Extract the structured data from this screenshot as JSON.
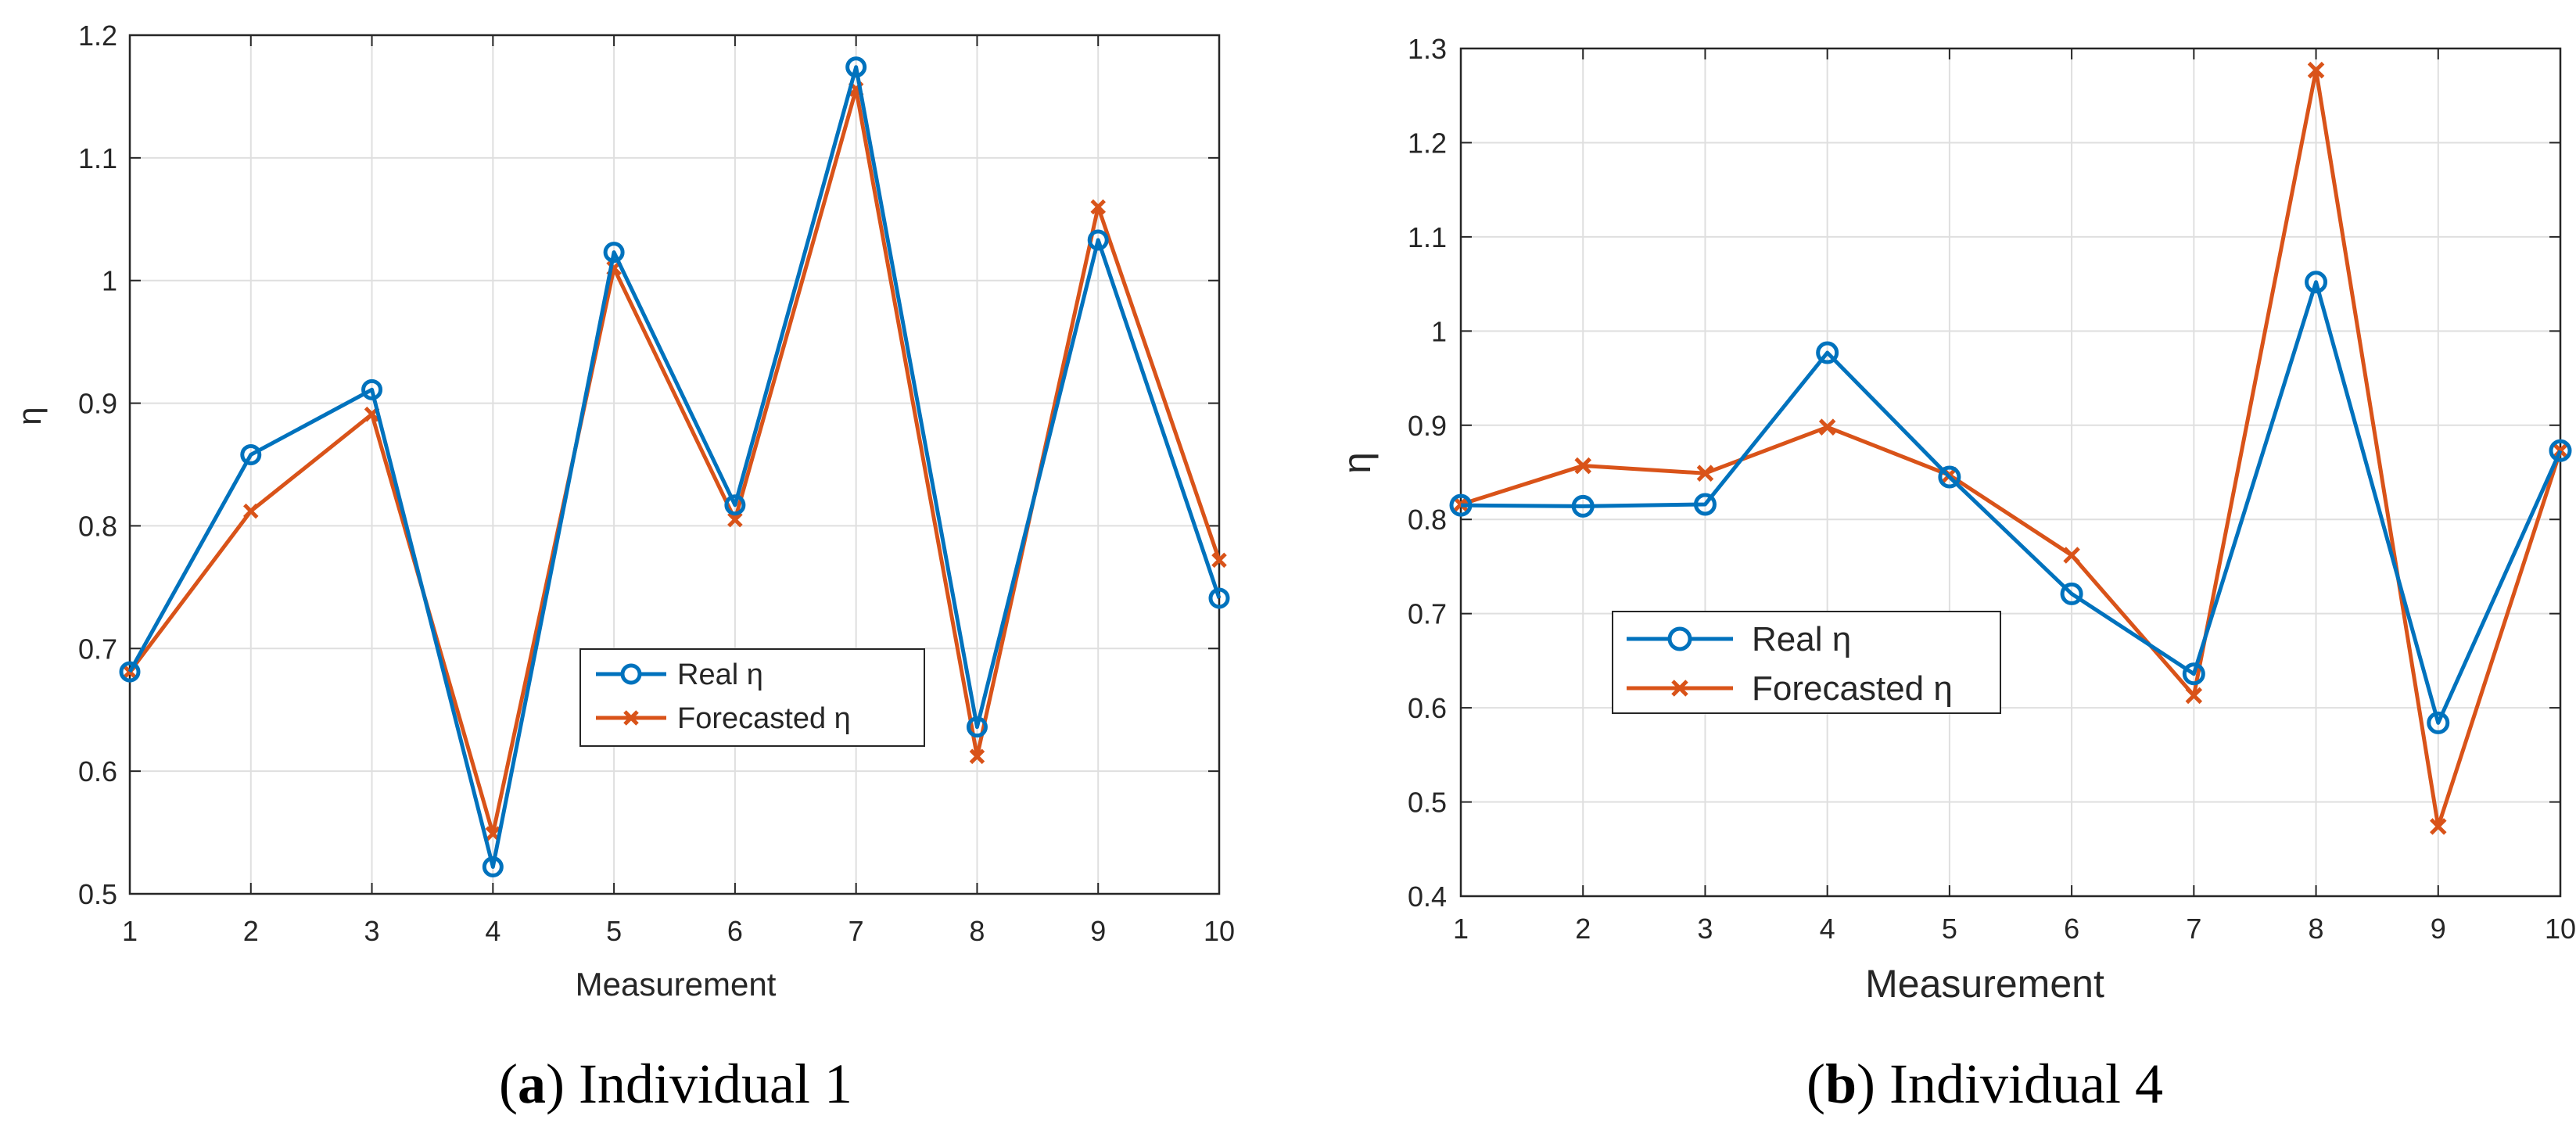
{
  "colors": {
    "real": "#0072BD",
    "forecast": "#D95319",
    "grid": "#DFDFDF",
    "axis": "#262626"
  },
  "chart_data": [
    {
      "type": "line",
      "caption_letter": "a",
      "caption_text": "Individual 1",
      "xlabel": "Measurement",
      "ylabel": "η",
      "x": [
        1,
        2,
        3,
        4,
        5,
        6,
        7,
        8,
        9,
        10
      ],
      "xlim": [
        1,
        10
      ],
      "ylim": [
        0.5,
        1.2
      ],
      "yticks": [
        0.5,
        0.6,
        0.7,
        0.8,
        0.9,
        1.0,
        1.1,
        1.2
      ],
      "ytick_labels": [
        "0.5",
        "0.6",
        "0.7",
        "0.8",
        "0.9",
        "1",
        "1.1",
        "1.2"
      ],
      "grid": true,
      "legend_position": "center-right",
      "series": [
        {
          "name": "Real η",
          "marker": "circle",
          "values": [
            0.681,
            0.858,
            0.911,
            0.522,
            1.023,
            0.817,
            1.174,
            0.636,
            1.033,
            0.741
          ]
        },
        {
          "name": "Forecasted η",
          "marker": "x",
          "values": [
            0.681,
            0.812,
            0.891,
            0.549,
            1.01,
            0.805,
            1.156,
            0.612,
            1.06,
            0.772
          ]
        }
      ]
    },
    {
      "type": "line",
      "caption_letter": "b",
      "caption_text": "Individual 4",
      "xlabel": "Measurement",
      "ylabel": "η",
      "x": [
        1,
        2,
        3,
        4,
        5,
        6,
        7,
        8,
        9,
        10
      ],
      "xlim": [
        1,
        10
      ],
      "ylim": [
        0.4,
        1.3
      ],
      "yticks": [
        0.4,
        0.5,
        0.6,
        0.7,
        0.8,
        0.9,
        1.0,
        1.1,
        1.2,
        1.3
      ],
      "ytick_labels": [
        "0.4",
        "0.5",
        "0.6",
        "0.7",
        "0.8",
        "0.9",
        "1",
        "1.1",
        "1.2",
        "1.3"
      ],
      "grid": true,
      "legend_position": "center-left",
      "series": [
        {
          "name": "Real η",
          "marker": "circle",
          "values": [
            0.815,
            0.814,
            0.816,
            0.977,
            0.845,
            0.721,
            0.636,
            1.052,
            0.584,
            0.873
          ]
        },
        {
          "name": "Forecasted η",
          "marker": "x",
          "values": [
            0.816,
            0.857,
            0.849,
            0.898,
            0.847,
            0.762,
            0.613,
            1.277,
            0.474,
            0.873
          ]
        }
      ]
    }
  ]
}
